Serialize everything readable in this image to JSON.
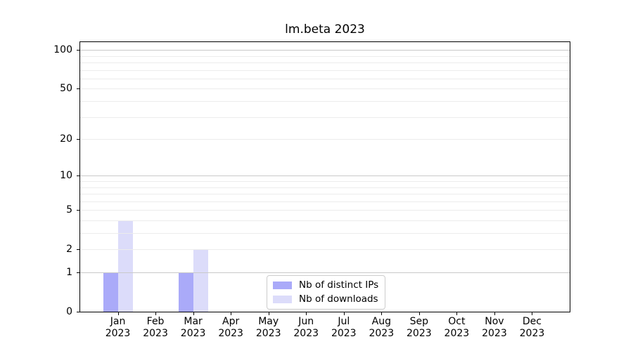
{
  "chart_data": {
    "type": "bar",
    "title": "lm.beta 2023",
    "categories": [
      {
        "month": "Jan",
        "year": "2023"
      },
      {
        "month": "Feb",
        "year": "2023"
      },
      {
        "month": "Mar",
        "year": "2023"
      },
      {
        "month": "Apr",
        "year": "2023"
      },
      {
        "month": "May",
        "year": "2023"
      },
      {
        "month": "Jun",
        "year": "2023"
      },
      {
        "month": "Jul",
        "year": "2023"
      },
      {
        "month": "Aug",
        "year": "2023"
      },
      {
        "month": "Sep",
        "year": "2023"
      },
      {
        "month": "Oct",
        "year": "2023"
      },
      {
        "month": "Nov",
        "year": "2023"
      },
      {
        "month": "Dec",
        "year": "2023"
      }
    ],
    "series": [
      {
        "name": "Nb of distinct IPs",
        "color": "#aaaaf9",
        "values": [
          1,
          0,
          1,
          0,
          0,
          0,
          0,
          0,
          0,
          0,
          0,
          0
        ]
      },
      {
        "name": "Nb of downloads",
        "color": "#dcdcfa",
        "values": [
          4,
          0,
          2,
          0,
          0,
          0,
          0,
          0,
          0,
          0,
          0,
          0
        ]
      }
    ],
    "yscale": "log1p",
    "ylim": [
      0,
      115
    ],
    "ytick_labels": [
      0,
      1,
      2,
      5,
      10,
      20,
      50,
      100
    ],
    "major_gridlines": [
      1,
      10,
      100
    ],
    "minor_gridlines": [
      2,
      3,
      4,
      5,
      6,
      7,
      8,
      9,
      20,
      30,
      40,
      50,
      60,
      70,
      80,
      90
    ],
    "grid": true,
    "legend_location": "lower center inside plot",
    "xlabel": "",
    "ylabel": "",
    "colors": {
      "major_grid": "#c9c9c9",
      "minor_grid": "#ececec",
      "axis": "#000000",
      "text": "#000000",
      "background": "#ffffff"
    }
  }
}
